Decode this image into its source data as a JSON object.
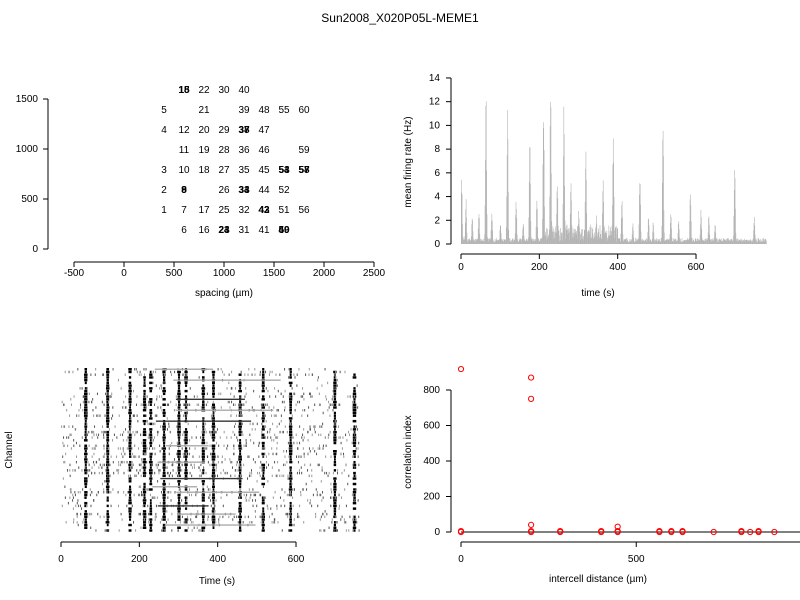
{
  "figure_title": "Sun2008_X020P05L-MEME1",
  "colors": {
    "axis": "#000000",
    "hist": "#b3b3b3",
    "raster": "#000000",
    "points": "#ff0000"
  },
  "chart_data": [
    {
      "id": "layout",
      "type": "scatter",
      "xlabel": "spacing (µm)",
      "ylabel": "",
      "xlim": [
        -500,
        2500
      ],
      "ylim": [
        0,
        1500
      ],
      "xticks": [
        -500,
        0,
        500,
        1000,
        1500,
        2000,
        2500
      ],
      "yticks": [
        0,
        500,
        1000,
        1500
      ],
      "labels": [
        {
          "t": "5",
          "x": 200,
          "y": 1400
        },
        {
          "t": "4",
          "x": 200,
          "y": 1200
        },
        {
          "t": "3",
          "x": 200,
          "y": 800
        },
        {
          "t": "2",
          "x": 200,
          "y": 600
        },
        {
          "t": "1",
          "x": 200,
          "y": 400
        },
        {
          "t": "15",
          "x": 400,
          "y": 1600
        },
        {
          "t": "18",
          "x": 400,
          "y": 1600
        },
        {
          "t": "12",
          "x": 400,
          "y": 1200
        },
        {
          "t": "11",
          "x": 400,
          "y": 1000
        },
        {
          "t": "10",
          "x": 400,
          "y": 800
        },
        {
          "t": "8",
          "x": 400,
          "y": 600
        },
        {
          "t": "9",
          "x": 400,
          "y": 600
        },
        {
          "t": "7",
          "x": 400,
          "y": 400
        },
        {
          "t": "6",
          "x": 400,
          "y": 200
        },
        {
          "t": "22",
          "x": 600,
          "y": 1600
        },
        {
          "t": "21",
          "x": 600,
          "y": 1400
        },
        {
          "t": "20",
          "x": 600,
          "y": 1200
        },
        {
          "t": "19",
          "x": 600,
          "y": 1000
        },
        {
          "t": "18",
          "x": 600,
          "y": 800
        },
        {
          "t": "17",
          "x": 600,
          "y": 400
        },
        {
          "t": "16",
          "x": 600,
          "y": 200
        },
        {
          "t": "30",
          "x": 800,
          "y": 1600
        },
        {
          "t": "29",
          "x": 800,
          "y": 1200
        },
        {
          "t": "28",
          "x": 800,
          "y": 1000
        },
        {
          "t": "27",
          "x": 800,
          "y": 800
        },
        {
          "t": "26",
          "x": 800,
          "y": 600
        },
        {
          "t": "25",
          "x": 800,
          "y": 400
        },
        {
          "t": "23",
          "x": 800,
          "y": 200
        },
        {
          "t": "24",
          "x": 800,
          "y": 200
        },
        {
          "t": "40",
          "x": 1000,
          "y": 1600
        },
        {
          "t": "39",
          "x": 1000,
          "y": 1400
        },
        {
          "t": "37",
          "x": 1000,
          "y": 1200
        },
        {
          "t": "38",
          "x": 1000,
          "y": 1200
        },
        {
          "t": "36",
          "x": 1000,
          "y": 1000
        },
        {
          "t": "35",
          "x": 1000,
          "y": 800
        },
        {
          "t": "33",
          "x": 1000,
          "y": 600
        },
        {
          "t": "34",
          "x": 1000,
          "y": 600
        },
        {
          "t": "32",
          "x": 1000,
          "y": 400
        },
        {
          "t": "31",
          "x": 1000,
          "y": 200
        },
        {
          "t": "48",
          "x": 1200,
          "y": 1400
        },
        {
          "t": "47",
          "x": 1200,
          "y": 1200
        },
        {
          "t": "46",
          "x": 1200,
          "y": 1000
        },
        {
          "t": "45",
          "x": 1200,
          "y": 800
        },
        {
          "t": "44",
          "x": 1200,
          "y": 600
        },
        {
          "t": "42",
          "x": 1200,
          "y": 400
        },
        {
          "t": "43",
          "x": 1200,
          "y": 400
        },
        {
          "t": "41",
          "x": 1200,
          "y": 200
        },
        {
          "t": "55",
          "x": 1400,
          "y": 1400
        },
        {
          "t": "53",
          "x": 1400,
          "y": 800
        },
        {
          "t": "54",
          "x": 1400,
          "y": 800
        },
        {
          "t": "52",
          "x": 1400,
          "y": 600
        },
        {
          "t": "51",
          "x": 1400,
          "y": 400
        },
        {
          "t": "49",
          "x": 1400,
          "y": 200
        },
        {
          "t": "50",
          "x": 1400,
          "y": 200
        },
        {
          "t": "60",
          "x": 1600,
          "y": 1400
        },
        {
          "t": "59",
          "x": 1600,
          "y": 1000
        },
        {
          "t": "57",
          "x": 1600,
          "y": 800
        },
        {
          "t": "58",
          "x": 1600,
          "y": 800
        },
        {
          "t": "56",
          "x": 1600,
          "y": 400
        }
      ]
    },
    {
      "id": "rate",
      "type": "bar",
      "xlabel": "time (s)",
      "ylabel": "mean firing rate (Hz)",
      "xlim": [
        0,
        780
      ],
      "ylim": [
        0,
        14
      ],
      "xticks": [
        0,
        200,
        400,
        600
      ],
      "yticks": [
        0,
        2,
        4,
        6,
        8,
        10,
        12,
        14
      ],
      "bins": 760,
      "bursts": [
        [
          1,
          5.5
        ],
        [
          12,
          4
        ],
        [
          28,
          2.5
        ],
        [
          45,
          3
        ],
        [
          63,
          13.5
        ],
        [
          78,
          3
        ],
        [
          100,
          2
        ],
        [
          118,
          11.5
        ],
        [
          140,
          4
        ],
        [
          158,
          2
        ],
        [
          175,
          10
        ],
        [
          193,
          4
        ],
        [
          210,
          12.5
        ],
        [
          228,
          14
        ],
        [
          245,
          6
        ],
        [
          262,
          11.8
        ],
        [
          280,
          6
        ],
        [
          300,
          3
        ],
        [
          318,
          9
        ],
        [
          345,
          2.5
        ],
        [
          362,
          5.5
        ],
        [
          388,
          10
        ],
        [
          410,
          4
        ],
        [
          438,
          2
        ],
        [
          456,
          6.5
        ],
        [
          478,
          2.5
        ],
        [
          490,
          2
        ],
        [
          515,
          11
        ],
        [
          535,
          3
        ],
        [
          555,
          2
        ],
        [
          585,
          5
        ],
        [
          612,
          3
        ],
        [
          632,
          2.5
        ],
        [
          648,
          2
        ],
        [
          698,
          7
        ],
        [
          748,
          2.5
        ]
      ]
    },
    {
      "id": "raster",
      "type": "scatter",
      "xlabel": "Time (s)",
      "ylabel": "Channel",
      "xlim": [
        0,
        760
      ],
      "channels": 60,
      "xticks": [
        0,
        200,
        400,
        600
      ],
      "bursts": [
        62,
        118,
        175,
        212,
        228,
        262,
        300,
        318,
        362,
        388,
        456,
        515,
        585,
        698,
        748
      ]
    },
    {
      "id": "corr",
      "type": "scatter",
      "xlabel": "intercell distance (µm)",
      "ylabel": "correlation index",
      "xlim": [
        0,
        1740
      ],
      "ylim": [
        0,
        920
      ],
      "xticks": [
        0,
        500,
        1000,
        1500
      ],
      "yticks": [
        0,
        200,
        400,
        600,
        800
      ],
      "points": [
        [
          0,
          918
        ],
        [
          200,
          870
        ],
        [
          200,
          750
        ],
        [
          200,
          40
        ],
        [
          447,
          30
        ],
        [
          0,
          5
        ],
        [
          0,
          0
        ],
        [
          200,
          5
        ],
        [
          200,
          0
        ],
        [
          283,
          5
        ],
        [
          283,
          0
        ],
        [
          400,
          5
        ],
        [
          400,
          0
        ],
        [
          447,
          5
        ],
        [
          447,
          0
        ],
        [
          566,
          5
        ],
        [
          566,
          0
        ],
        [
          600,
          5
        ],
        [
          600,
          0
        ],
        [
          632,
          5
        ],
        [
          632,
          0
        ],
        [
          721,
          0
        ],
        [
          800,
          5
        ],
        [
          800,
          0
        ],
        [
          825,
          0
        ],
        [
          849,
          5
        ],
        [
          849,
          0
        ],
        [
          894,
          0
        ],
        [
          1000,
          5
        ],
        [
          1000,
          0
        ],
        [
          1020,
          0
        ],
        [
          1077,
          5
        ],
        [
          1077,
          0
        ],
        [
          1131,
          0
        ],
        [
          1166,
          0
        ],
        [
          1200,
          5
        ],
        [
          1200,
          0
        ],
        [
          1217,
          0
        ],
        [
          1265,
          0
        ],
        [
          1280,
          0
        ],
        [
          1342,
          0
        ],
        [
          1400,
          5
        ],
        [
          1400,
          0
        ],
        [
          1414,
          0
        ],
        [
          1442,
          0
        ],
        [
          1487,
          0
        ],
        [
          1523,
          0
        ],
        [
          1562,
          0
        ],
        [
          1612,
          0
        ],
        [
          1697,
          0
        ],
        [
          1720,
          0
        ]
      ]
    }
  ]
}
